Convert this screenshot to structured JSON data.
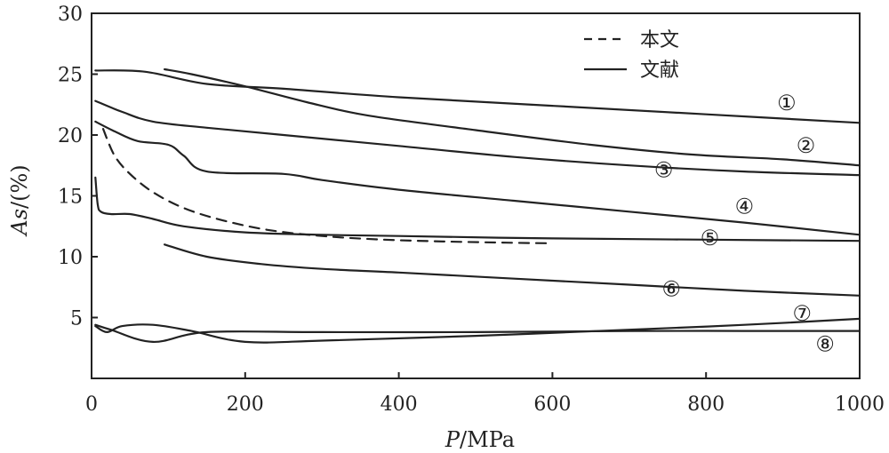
{
  "chart_data": {
    "type": "line",
    "title": "",
    "xlabel": {
      "symbol": "P",
      "unit": "/MPa"
    },
    "ylabel": {
      "symbol": "As",
      "unit": "/(%)"
    },
    "xlim": [
      0,
      1000
    ],
    "ylim": [
      0,
      30
    ],
    "xticks": [
      0,
      200,
      400,
      600,
      800,
      1000
    ],
    "yticks": [
      5,
      10,
      15,
      20,
      25,
      30
    ],
    "grid": false,
    "legend": {
      "position": "top-center",
      "entries": [
        {
          "label": "本文",
          "style": "dashed"
        },
        {
          "label": "文献",
          "style": "solid"
        }
      ]
    },
    "series": [
      {
        "name": "本文",
        "style": "dashed",
        "x": [
          15,
          30,
          50,
          80,
          120,
          170,
          230,
          300,
          380,
          460,
          540,
          600
        ],
        "y": [
          20.5,
          18.3,
          16.8,
          15.3,
          14.0,
          13.0,
          12.2,
          11.7,
          11.4,
          11.25,
          11.15,
          11.1
        ]
      },
      {
        "name": "1",
        "style": "solid",
        "label": "①",
        "label_at": [
          905,
          22.7
        ],
        "x": [
          5,
          70,
          150,
          250,
          400,
          600,
          800,
          1000
        ],
        "y": [
          25.3,
          25.2,
          24.2,
          23.8,
          23.1,
          22.4,
          21.7,
          21.0
        ]
      },
      {
        "name": "2",
        "style": "solid",
        "label": "②",
        "label_at": [
          930,
          19.2
        ],
        "x": [
          95,
          130,
          200,
          280,
          360,
          500,
          650,
          780,
          900,
          1000
        ],
        "y": [
          25.4,
          25.0,
          24.0,
          22.7,
          21.6,
          20.4,
          19.2,
          18.4,
          18.0,
          17.5
        ]
      },
      {
        "name": "3",
        "style": "solid",
        "label": "③",
        "label_at": [
          745,
          17.2
        ],
        "x": [
          5,
          40,
          80,
          150,
          250,
          400,
          550,
          700,
          850,
          1000
        ],
        "y": [
          22.8,
          21.9,
          21.1,
          20.6,
          20.0,
          19.1,
          18.2,
          17.5,
          17.0,
          16.7
        ]
      },
      {
        "name": "4",
        "style": "solid",
        "label": "④",
        "label_at": [
          850,
          14.2
        ],
        "x": [
          5,
          30,
          60,
          100,
          120,
          150,
          250,
          300,
          400,
          550,
          700,
          850,
          1000
        ],
        "y": [
          21.1,
          20.3,
          19.5,
          19.2,
          18.3,
          17.0,
          16.8,
          16.3,
          15.5,
          14.6,
          13.7,
          12.8,
          11.8
        ]
      },
      {
        "name": "5",
        "style": "solid",
        "label": "⑤",
        "label_at": [
          805,
          11.6
        ],
        "x": [
          5,
          8,
          12,
          25,
          50,
          80,
          120,
          200,
          300,
          400,
          600,
          800,
          1000
        ],
        "y": [
          16.5,
          14.3,
          13.7,
          13.5,
          13.5,
          13.1,
          12.5,
          12.0,
          11.8,
          11.7,
          11.5,
          11.4,
          11.3
        ]
      },
      {
        "name": "6",
        "style": "solid",
        "label": "⑥",
        "label_at": [
          755,
          7.4
        ],
        "x": [
          95,
          150,
          220,
          300,
          400,
          550,
          700,
          850,
          1000
        ],
        "y": [
          11.0,
          10.0,
          9.4,
          9.0,
          8.7,
          8.2,
          7.7,
          7.2,
          6.8
        ]
      },
      {
        "name": "7",
        "style": "solid",
        "label": "⑦",
        "label_at": [
          925,
          5.4
        ],
        "x": [
          5,
          20,
          40,
          80,
          130,
          200,
          300,
          500,
          700,
          850,
          1000
        ],
        "y": [
          4.3,
          3.8,
          4.3,
          4.4,
          3.9,
          3.0,
          3.1,
          3.5,
          4.0,
          4.4,
          4.9
        ]
      },
      {
        "name": "8",
        "style": "solid",
        "label": "⑧",
        "label_at": [
          955,
          2.9
        ],
        "x": [
          5,
          25,
          80,
          150,
          300,
          500,
          700,
          850,
          1000
        ],
        "y": [
          4.4,
          4.0,
          3.0,
          3.8,
          3.8,
          3.8,
          3.9,
          3.9,
          3.9
        ]
      }
    ]
  }
}
